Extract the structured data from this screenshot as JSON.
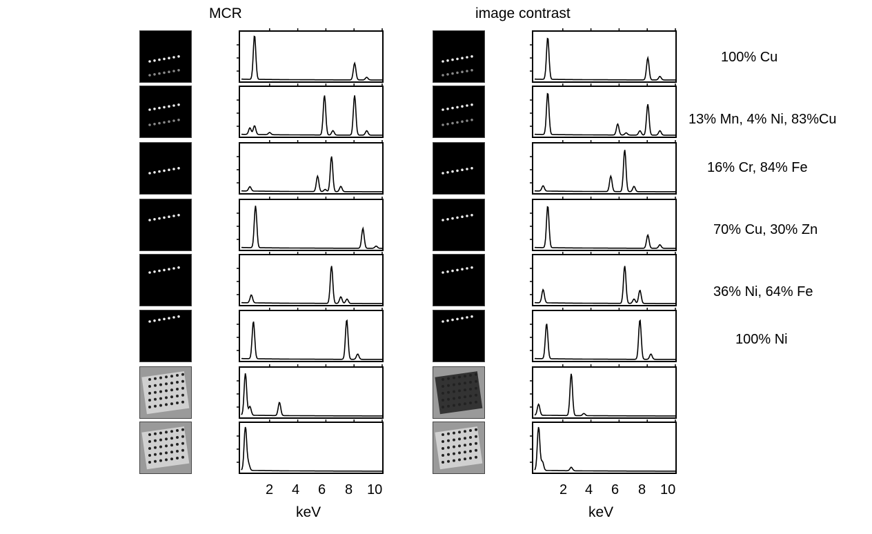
{
  "titles": {
    "left": "MCR",
    "right": "image contrast"
  },
  "xlabel": "keV",
  "xticks": [
    "2",
    "4",
    "6",
    "8",
    "10"
  ],
  "compositions": [
    "100% Cu",
    "13% Mn, 4% Ni, 83%Cu",
    "16% Cr, 84% Fe",
    "70% Cu, 30% Zn",
    "36% Ni, 64% Fe",
    "100% Ni"
  ],
  "chart_data": [
    {
      "type": "line",
      "title": "MCR",
      "xlabel": "keV",
      "xlim": [
        0,
        10
      ],
      "x_ticks": [
        2,
        4,
        6,
        8,
        10
      ],
      "y_scale": "relative intensity (0-1)",
      "series": [
        {
          "peaks": [
            [
              0.93,
              1.0
            ],
            [
              8.04,
              0.38
            ],
            [
              8.9,
              0.06
            ]
          ]
        },
        {
          "peaks": [
            [
              0.6,
              0.15
            ],
            [
              0.93,
              0.2
            ],
            [
              2.0,
              0.05
            ],
            [
              5.9,
              0.9
            ],
            [
              6.5,
              0.1
            ],
            [
              8.04,
              0.9
            ],
            [
              8.9,
              0.1
            ]
          ]
        },
        {
          "peaks": [
            [
              0.6,
              0.1
            ],
            [
              5.41,
              0.35
            ],
            [
              5.95,
              0.05
            ],
            [
              6.4,
              0.8
            ],
            [
              7.06,
              0.12
            ]
          ]
        },
        {
          "peaks": [
            [
              1.0,
              0.95
            ],
            [
              8.63,
              0.45
            ],
            [
              9.57,
              0.05
            ]
          ]
        },
        {
          "peaks": [
            [
              0.7,
              0.18
            ],
            [
              6.4,
              0.85
            ],
            [
              7.06,
              0.15
            ],
            [
              7.5,
              0.1
            ]
          ]
        },
        {
          "peaks": [
            [
              0.85,
              0.85
            ],
            [
              7.48,
              0.9
            ],
            [
              8.26,
              0.12
            ]
          ]
        },
        {
          "peaks": [
            [
              0.28,
              0.95
            ],
            [
              0.6,
              0.2
            ],
            [
              2.7,
              0.3
            ]
          ]
        },
        {
          "peaks": [
            [
              0.28,
              1.0
            ],
            [
              0.5,
              0.15
            ]
          ]
        }
      ]
    },
    {
      "type": "line",
      "title": "image contrast",
      "xlabel": "keV",
      "xlim": [
        0,
        10
      ],
      "x_ticks": [
        2,
        4,
        6,
        8,
        10
      ],
      "y_scale": "relative intensity (0-1)",
      "series": [
        {
          "peaks": [
            [
              0.93,
              0.95
            ],
            [
              8.04,
              0.5
            ],
            [
              8.9,
              0.08
            ]
          ]
        },
        {
          "peaks": [
            [
              0.93,
              0.95
            ],
            [
              5.9,
              0.25
            ],
            [
              6.5,
              0.05
            ],
            [
              7.48,
              0.1
            ],
            [
              8.04,
              0.7
            ],
            [
              8.9,
              0.1
            ]
          ]
        },
        {
          "peaks": [
            [
              0.6,
              0.12
            ],
            [
              5.41,
              0.35
            ],
            [
              6.4,
              0.95
            ],
            [
              7.06,
              0.12
            ]
          ]
        },
        {
          "peaks": [
            [
              0.93,
              0.95
            ],
            [
              8.04,
              0.3
            ],
            [
              8.9,
              0.08
            ]
          ]
        },
        {
          "peaks": [
            [
              0.6,
              0.3
            ],
            [
              6.4,
              0.85
            ],
            [
              7.06,
              0.1
            ],
            [
              7.48,
              0.3
            ]
          ]
        },
        {
          "peaks": [
            [
              0.85,
              0.8
            ],
            [
              7.48,
              0.9
            ],
            [
              8.26,
              0.12
            ]
          ]
        },
        {
          "peaks": [
            [
              0.28,
              0.25
            ],
            [
              2.6,
              0.95
            ],
            [
              3.5,
              0.05
            ]
          ]
        },
        {
          "peaks": [
            [
              0.28,
              1.0
            ],
            [
              0.55,
              0.2
            ],
            [
              2.6,
              0.08
            ]
          ]
        }
      ]
    }
  ]
}
